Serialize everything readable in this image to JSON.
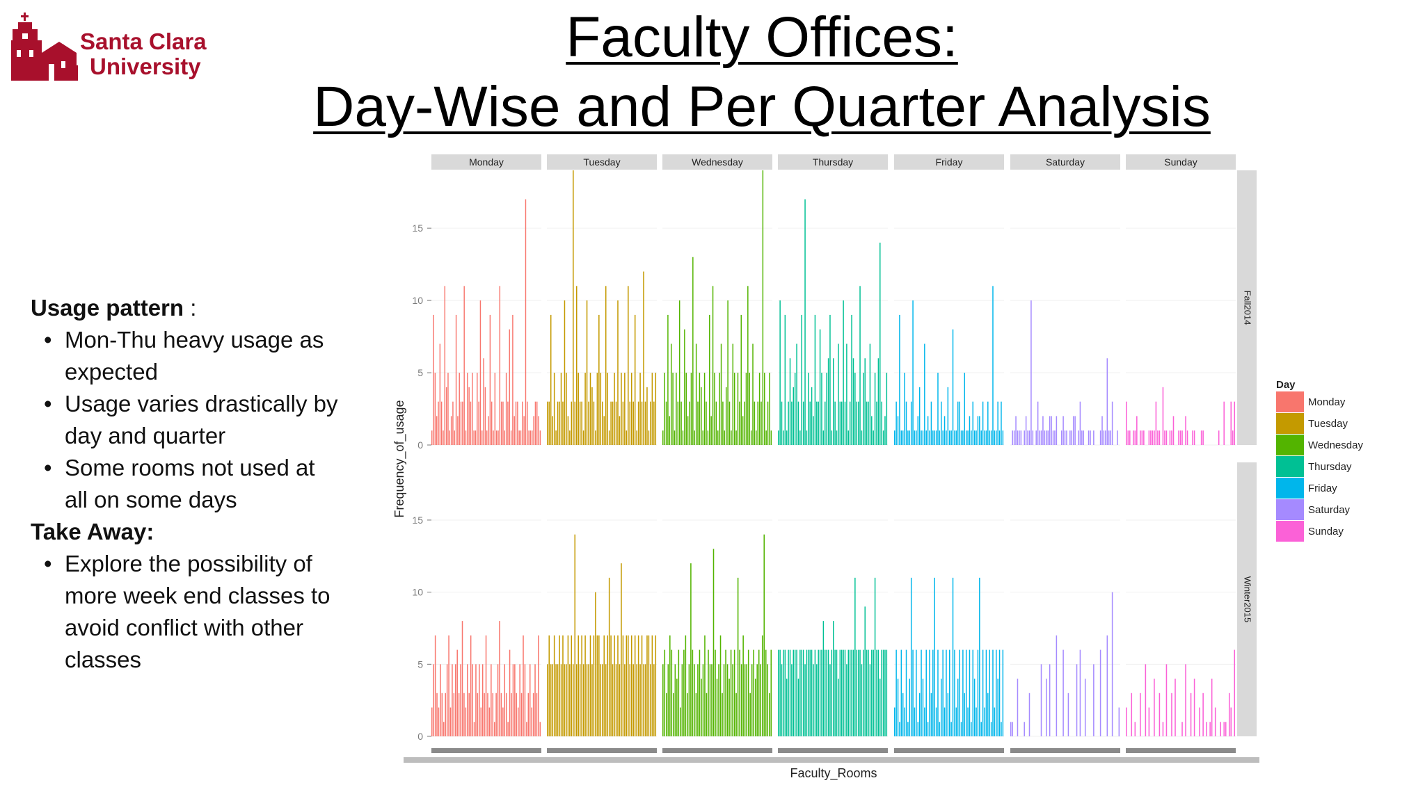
{
  "slide": {
    "title_line1": "Faculty Offices:",
    "title_line2": "Day-Wise and Per Quarter Analysis",
    "logo": {
      "line1": "Santa Clara",
      "line2": "University"
    },
    "usage_heading": "Usage pattern",
    "usage_colon": " :",
    "usage_points": [
      [
        "Mon-Thu heavy usage as",
        "expected"
      ],
      [
        "Usage varies drastically by",
        "day and quarter"
      ],
      [
        "Some rooms not used at",
        "all on some days"
      ]
    ],
    "takeaway_heading": "Take Away:",
    "takeaway_points": [
      [
        "Explore the possibility of",
        "more week end classes to",
        "avoid conflict with other",
        "classes"
      ]
    ]
  },
  "colors": {
    "brand": "#a8102c",
    "Monday": "#F8766D",
    "Tuesday": "#C49A00",
    "Wednesday": "#53B400",
    "Thursday": "#00C094",
    "Friday": "#00B6EB",
    "Saturday": "#A58AFF",
    "Sunday": "#FB61D7"
  },
  "chart_data": {
    "type": "bar",
    "xlabel": "Faculty_Rooms",
    "ylabel": "Frequency_of_usage",
    "yticks": [
      0,
      5,
      10,
      15
    ],
    "ylim": [
      0,
      19
    ],
    "facet_columns": [
      "Monday",
      "Tuesday",
      "Wednesday",
      "Thursday",
      "Friday",
      "Saturday",
      "Sunday"
    ],
    "facet_rows": [
      "Fall2014",
      "Winter2015"
    ],
    "legend": {
      "title": "Day",
      "position": "right",
      "entries": [
        "Monday",
        "Tuesday",
        "Wednesday",
        "Thursday",
        "Friday",
        "Saturday",
        "Sunday"
      ]
    },
    "grid": true,
    "panels": [
      {
        "quarter": "Fall2014",
        "day": "Monday",
        "values": [
          1,
          9,
          5,
          2,
          3,
          7,
          3,
          1,
          11,
          4,
          5,
          1,
          2,
          3,
          1,
          9,
          2,
          5,
          3,
          3,
          11,
          1,
          5,
          4,
          3,
          5,
          1,
          1,
          5,
          3,
          10,
          1,
          6,
          4,
          1,
          2,
          9,
          3,
          1,
          5,
          1,
          1,
          11,
          3,
          3,
          1,
          5,
          3,
          8,
          1,
          9,
          2,
          3,
          3,
          1,
          1,
          3,
          2,
          17,
          3,
          1,
          1,
          1,
          2,
          3,
          3,
          2,
          1
        ]
      },
      {
        "quarter": "Fall2014",
        "day": "Tuesday",
        "values": [
          3,
          3,
          9,
          2,
          5,
          1,
          3,
          3,
          5,
          3,
          10,
          5,
          2,
          1,
          3,
          19,
          3,
          11,
          5,
          3,
          3,
          1,
          5,
          10,
          3,
          5,
          4,
          3,
          1,
          5,
          9,
          5,
          3,
          2,
          11,
          5,
          1,
          3,
          3,
          5,
          3,
          10,
          2,
          5,
          3,
          5,
          1,
          11,
          3,
          5,
          3,
          9,
          1,
          3,
          5,
          3,
          12,
          3,
          4,
          1,
          3,
          5,
          3,
          5
        ]
      },
      {
        "quarter": "Fall2014",
        "day": "Wednesday",
        "values": [
          1,
          5,
          3,
          9,
          2,
          7,
          5,
          1,
          5,
          3,
          10,
          3,
          1,
          8,
          5,
          2,
          3,
          5,
          13,
          1,
          7,
          3,
          5,
          4,
          1,
          5,
          3,
          1,
          9,
          2,
          11,
          5,
          3,
          1,
          5,
          7,
          3,
          1,
          4,
          10,
          3,
          1,
          7,
          5,
          1,
          5,
          3,
          9,
          2,
          3,
          5,
          11,
          5,
          1,
          7,
          3,
          1,
          3,
          5,
          3,
          19,
          5,
          1,
          3,
          5,
          1
        ]
      },
      {
        "quarter": "Fall2014",
        "day": "Thursday",
        "values": [
          1,
          10,
          3,
          1,
          9,
          1,
          3,
          6,
          3,
          4,
          5,
          7,
          3,
          1,
          9,
          3,
          17,
          1,
          5,
          3,
          4,
          2,
          9,
          3,
          3,
          8,
          5,
          1,
          3,
          5,
          6,
          9,
          1,
          6,
          3,
          1,
          7,
          3,
          3,
          10,
          3,
          7,
          1,
          3,
          9,
          6,
          5,
          3,
          3,
          11,
          1,
          5,
          6,
          3,
          3,
          7,
          2,
          1,
          5,
          3,
          6,
          14,
          3,
          1,
          2,
          5
        ]
      },
      {
        "quarter": "Fall2014",
        "day": "Friday",
        "values": [
          1,
          3,
          2,
          9,
          1,
          1,
          5,
          3,
          1,
          1,
          3,
          10,
          1,
          1,
          2,
          4,
          1,
          1,
          7,
          1,
          2,
          1,
          3,
          1,
          1,
          1,
          5,
          1,
          3,
          1,
          2,
          1,
          4,
          1,
          1,
          8,
          1,
          1,
          3,
          3,
          1,
          1,
          5,
          1,
          1,
          2,
          1,
          3,
          1,
          1,
          2,
          2,
          1,
          3,
          1,
          1,
          3,
          1,
          1,
          11,
          1,
          1,
          3,
          1,
          3,
          1
        ]
      },
      {
        "quarter": "Fall2014",
        "day": "Saturday",
        "values": [
          0,
          1,
          1,
          2,
          1,
          1,
          1,
          0,
          1,
          2,
          1,
          1,
          10,
          1,
          0,
          1,
          3,
          1,
          1,
          2,
          1,
          1,
          1,
          2,
          2,
          1,
          1,
          2,
          0,
          0,
          1,
          2,
          1,
          1,
          0,
          1,
          1,
          2,
          2,
          0,
          1,
          3,
          1,
          1,
          0,
          0,
          1,
          1,
          0,
          1,
          0,
          0,
          0,
          1,
          2,
          1,
          1,
          6,
          1,
          1,
          3,
          0,
          0,
          1,
          0
        ]
      },
      {
        "quarter": "Fall2014",
        "day": "Sunday",
        "values": [
          3,
          1,
          1,
          0,
          1,
          1,
          2,
          0,
          1,
          1,
          1,
          0,
          0,
          1,
          1,
          1,
          1,
          3,
          1,
          1,
          0,
          4,
          1,
          1,
          0,
          1,
          1,
          2,
          0,
          0,
          1,
          1,
          1,
          0,
          2,
          1,
          0,
          0,
          1,
          1,
          0,
          0,
          0,
          1,
          1,
          0,
          0,
          0,
          0,
          0,
          0,
          0,
          0,
          1,
          0,
          0,
          3,
          0,
          0,
          0,
          3,
          1,
          3
        ]
      },
      {
        "quarter": "Winter2015",
        "day": "Monday",
        "values": [
          2,
          5,
          7,
          3,
          2,
          5,
          3,
          1,
          3,
          5,
          7,
          2,
          5,
          3,
          5,
          6,
          3,
          5,
          8,
          3,
          2,
          5,
          3,
          7,
          5,
          1,
          5,
          3,
          5,
          2,
          5,
          3,
          7,
          3,
          2,
          5,
          3,
          1,
          3,
          5,
          8,
          3,
          2,
          5,
          3,
          1,
          6,
          3,
          5,
          5,
          3,
          2,
          5,
          3,
          7,
          5,
          1,
          3,
          5,
          2,
          3,
          5,
          3,
          7,
          1
        ]
      },
      {
        "quarter": "Winter2015",
        "day": "Tuesday",
        "values": [
          5,
          7,
          5,
          5,
          7,
          5,
          5,
          7,
          5,
          7,
          5,
          5,
          7,
          5,
          7,
          5,
          14,
          5,
          7,
          5,
          7,
          5,
          7,
          5,
          5,
          7,
          5,
          7,
          10,
          7,
          7,
          5,
          5,
          7,
          5,
          7,
          11,
          7,
          5,
          7,
          5,
          7,
          5,
          12,
          7,
          5,
          7,
          7,
          5,
          7,
          5,
          7,
          5,
          7,
          5,
          7,
          5,
          5,
          7,
          7,
          5,
          7,
          5,
          7
        ]
      },
      {
        "quarter": "Winter2015",
        "day": "Wednesday",
        "values": [
          5,
          6,
          3,
          5,
          7,
          6,
          3,
          5,
          4,
          6,
          2,
          5,
          6,
          7,
          3,
          5,
          12,
          6,
          5,
          3,
          5,
          6,
          4,
          5,
          7,
          3,
          6,
          5,
          5,
          13,
          6,
          4,
          5,
          7,
          3,
          5,
          6,
          5,
          4,
          6,
          5,
          6,
          3,
          11,
          6,
          5,
          7,
          5,
          5,
          6,
          3,
          5,
          6,
          4,
          5,
          6,
          5,
          7,
          14,
          6,
          5,
          3,
          6
        ]
      },
      {
        "quarter": "Winter2015",
        "day": "Thursday",
        "values": [
          6,
          6,
          5,
          6,
          6,
          4,
          6,
          6,
          5,
          6,
          6,
          6,
          4,
          6,
          6,
          6,
          5,
          6,
          6,
          6,
          6,
          5,
          6,
          5,
          6,
          6,
          6,
          8,
          6,
          6,
          6,
          5,
          6,
          8,
          6,
          6,
          4,
          6,
          6,
          6,
          6,
          5,
          6,
          6,
          6,
          6,
          11,
          6,
          6,
          6,
          5,
          6,
          9,
          6,
          6,
          5,
          6,
          6,
          11,
          6,
          6,
          4,
          6,
          6,
          6,
          6
        ]
      },
      {
        "quarter": "Winter2015",
        "day": "Friday",
        "values": [
          2,
          6,
          4,
          1,
          6,
          3,
          2,
          6,
          1,
          4,
          11,
          6,
          2,
          6,
          1,
          3,
          6,
          4,
          2,
          6,
          1,
          6,
          3,
          6,
          11,
          2,
          6,
          1,
          4,
          6,
          2,
          6,
          3,
          6,
          1,
          11,
          6,
          2,
          4,
          6,
          1,
          6,
          3,
          6,
          2,
          6,
          1,
          6,
          4,
          2,
          6,
          11,
          1,
          6,
          2,
          6,
          3,
          6,
          1,
          6,
          2,
          6,
          4,
          6,
          1,
          6
        ]
      },
      {
        "quarter": "Winter2015",
        "day": "Saturday",
        "values": [
          1,
          1,
          0,
          0,
          4,
          0,
          0,
          0,
          1,
          0,
          0,
          3,
          0,
          0,
          0,
          0,
          0,
          0,
          5,
          0,
          0,
          4,
          0,
          5,
          0,
          0,
          0,
          7,
          0,
          0,
          0,
          6,
          0,
          0,
          3,
          0,
          0,
          0,
          0,
          5,
          0,
          6,
          0,
          0,
          4,
          0,
          0,
          0,
          0,
          5,
          0,
          0,
          0,
          6,
          0,
          0,
          0,
          7,
          0,
          0,
          10,
          0,
          0,
          0,
          2
        ]
      },
      {
        "quarter": "Winter2015",
        "day": "Sunday",
        "values": [
          2,
          0,
          0,
          3,
          0,
          1,
          0,
          0,
          3,
          0,
          0,
          5,
          0,
          2,
          0,
          0,
          4,
          0,
          0,
          3,
          0,
          1,
          0,
          5,
          0,
          0,
          3,
          0,
          4,
          0,
          0,
          0,
          1,
          0,
          5,
          0,
          0,
          3,
          0,
          4,
          0,
          0,
          2,
          0,
          3,
          0,
          1,
          0,
          1,
          4,
          0,
          2,
          0,
          0,
          1,
          0,
          1,
          1,
          0,
          3,
          2,
          0,
          6
        ]
      }
    ]
  }
}
